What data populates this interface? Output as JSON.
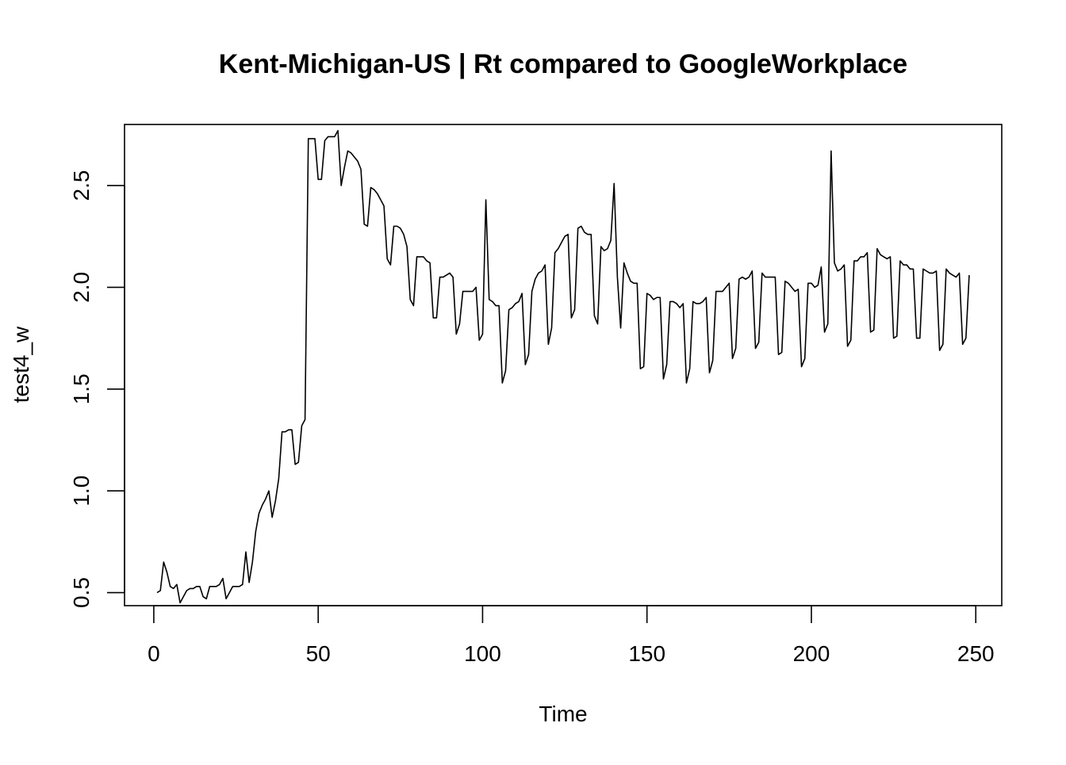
{
  "chart_data": {
    "type": "line",
    "title": "Kent-Michigan-US | Rt compared to GoogleWorkplace",
    "xlabel": "Time",
    "ylabel": "test4_w",
    "xlim": [
      -8.9,
      257.9
    ],
    "ylim": [
      0.436,
      2.8
    ],
    "xticks": [
      0,
      50,
      100,
      150,
      200,
      250
    ],
    "xtick_labels": [
      "0",
      "50",
      "100",
      "150",
      "200",
      "250"
    ],
    "yticks": [
      0.5,
      1.0,
      1.5,
      2.0,
      2.5
    ],
    "ytick_labels": [
      "0.5",
      "1.0",
      "1.5",
      "2.0",
      "2.5"
    ],
    "grid": false,
    "line_color": "#000000",
    "series": [
      {
        "x": [
          1,
          2,
          3,
          4,
          5,
          6,
          7,
          8,
          9,
          10,
          11,
          12,
          13,
          14,
          15,
          16,
          17,
          18,
          19,
          20,
          21,
          22,
          23,
          24,
          25,
          26,
          27,
          28,
          29,
          30,
          31,
          32,
          33,
          34,
          35,
          36,
          37,
          38,
          39,
          40,
          41,
          42,
          43,
          44,
          45,
          46,
          47,
          48,
          49,
          50,
          51,
          52,
          53,
          54,
          55,
          56,
          57,
          58,
          59,
          60,
          61,
          62,
          63,
          64,
          65,
          66,
          67,
          68,
          69,
          70,
          71,
          72,
          73,
          74,
          75,
          76,
          77,
          78,
          79,
          80,
          81,
          82,
          83,
          84,
          85,
          86,
          87,
          88,
          89,
          90,
          91,
          92,
          93,
          94,
          95,
          96,
          97,
          98,
          99,
          100,
          101,
          102,
          103,
          104,
          105,
          106,
          107,
          108,
          109,
          110,
          111,
          112,
          113,
          114,
          115,
          116,
          117,
          118,
          119,
          120,
          121,
          122,
          123,
          124,
          125,
          126,
          127,
          128,
          129,
          130,
          131,
          132,
          133,
          134,
          135,
          136,
          137,
          138,
          139,
          140,
          141,
          142,
          143,
          144,
          145,
          146,
          147,
          148,
          149,
          150,
          151,
          152,
          153,
          154,
          155,
          156,
          157,
          158,
          159,
          160,
          161,
          162,
          163,
          164,
          165,
          166,
          167,
          168,
          169,
          170,
          171,
          172,
          173,
          174,
          175,
          176,
          177,
          178,
          179,
          180,
          181,
          182,
          183,
          184,
          185,
          186,
          187,
          188,
          189,
          190,
          191,
          192,
          193,
          194,
          195,
          196,
          197,
          198,
          199,
          200,
          201,
          202,
          203,
          204,
          205,
          206,
          207,
          208,
          209,
          210,
          211,
          212,
          213,
          214,
          215,
          216,
          217,
          218,
          219,
          220,
          221,
          222,
          223,
          224,
          225,
          226,
          227,
          228,
          229,
          230,
          231,
          232,
          233,
          234,
          235,
          236,
          237,
          238,
          239,
          240,
          241,
          242,
          243,
          244,
          245,
          246,
          247,
          248
        ],
        "y": [
          0.5,
          0.51,
          0.65,
          0.6,
          0.53,
          0.52,
          0.54,
          0.45,
          0.48,
          0.51,
          0.52,
          0.52,
          0.53,
          0.53,
          0.48,
          0.47,
          0.53,
          0.53,
          0.53,
          0.54,
          0.57,
          0.47,
          0.5,
          0.53,
          0.53,
          0.53,
          0.54,
          0.7,
          0.55,
          0.65,
          0.8,
          0.89,
          0.93,
          0.96,
          1.0,
          0.87,
          0.95,
          1.06,
          1.29,
          1.29,
          1.3,
          1.3,
          1.13,
          1.14,
          1.32,
          1.35,
          2.73,
          2.73,
          2.73,
          2.53,
          2.53,
          2.72,
          2.74,
          2.74,
          2.74,
          2.77,
          2.5,
          2.59,
          2.67,
          2.66,
          2.64,
          2.62,
          2.58,
          2.31,
          2.3,
          2.49,
          2.48,
          2.46,
          2.43,
          2.4,
          2.14,
          2.11,
          2.3,
          2.3,
          2.29,
          2.26,
          2.2,
          1.94,
          1.91,
          2.15,
          2.15,
          2.15,
          2.13,
          2.12,
          1.85,
          1.85,
          2.05,
          2.05,
          2.06,
          2.07,
          2.05,
          1.77,
          1.82,
          1.98,
          1.98,
          1.98,
          1.98,
          2.0,
          1.74,
          1.77,
          2.43,
          1.94,
          1.93,
          1.91,
          1.91,
          1.53,
          1.59,
          1.89,
          1.9,
          1.92,
          1.93,
          1.97,
          1.62,
          1.67,
          1.98,
          2.04,
          2.07,
          2.08,
          2.11,
          1.72,
          1.8,
          2.17,
          2.19,
          2.22,
          2.25,
          2.26,
          1.85,
          1.89,
          2.29,
          2.3,
          2.27,
          2.26,
          2.26,
          1.86,
          1.82,
          2.2,
          2.18,
          2.19,
          2.23,
          2.51,
          2.05,
          1.8,
          2.12,
          2.07,
          2.03,
          2.02,
          2.02,
          1.6,
          1.61,
          1.97,
          1.96,
          1.94,
          1.95,
          1.95,
          1.55,
          1.62,
          1.93,
          1.93,
          1.92,
          1.9,
          1.92,
          1.53,
          1.6,
          1.93,
          1.92,
          1.92,
          1.93,
          1.95,
          1.58,
          1.64,
          1.98,
          1.98,
          1.98,
          2.0,
          2.02,
          1.65,
          1.7,
          2.04,
          2.05,
          2.04,
          2.05,
          2.08,
          1.7,
          1.73,
          2.07,
          2.05,
          2.05,
          2.05,
          2.05,
          1.67,
          1.68,
          2.03,
          2.02,
          2.0,
          1.98,
          1.99,
          1.61,
          1.65,
          2.02,
          2.02,
          2.0,
          2.01,
          2.1,
          1.78,
          1.82,
          2.67,
          2.12,
          2.08,
          2.09,
          2.11,
          1.71,
          1.74,
          2.13,
          2.13,
          2.15,
          2.15,
          2.17,
          1.78,
          1.79,
          2.19,
          2.16,
          2.15,
          2.14,
          2.15,
          1.75,
          1.76,
          2.13,
          2.11,
          2.11,
          2.09,
          2.09,
          1.75,
          1.75,
          2.09,
          2.08,
          2.07,
          2.07,
          2.08,
          1.69,
          1.72,
          2.09,
          2.07,
          2.06,
          2.05,
          2.07,
          1.72,
          1.75,
          2.06
        ]
      }
    ]
  }
}
